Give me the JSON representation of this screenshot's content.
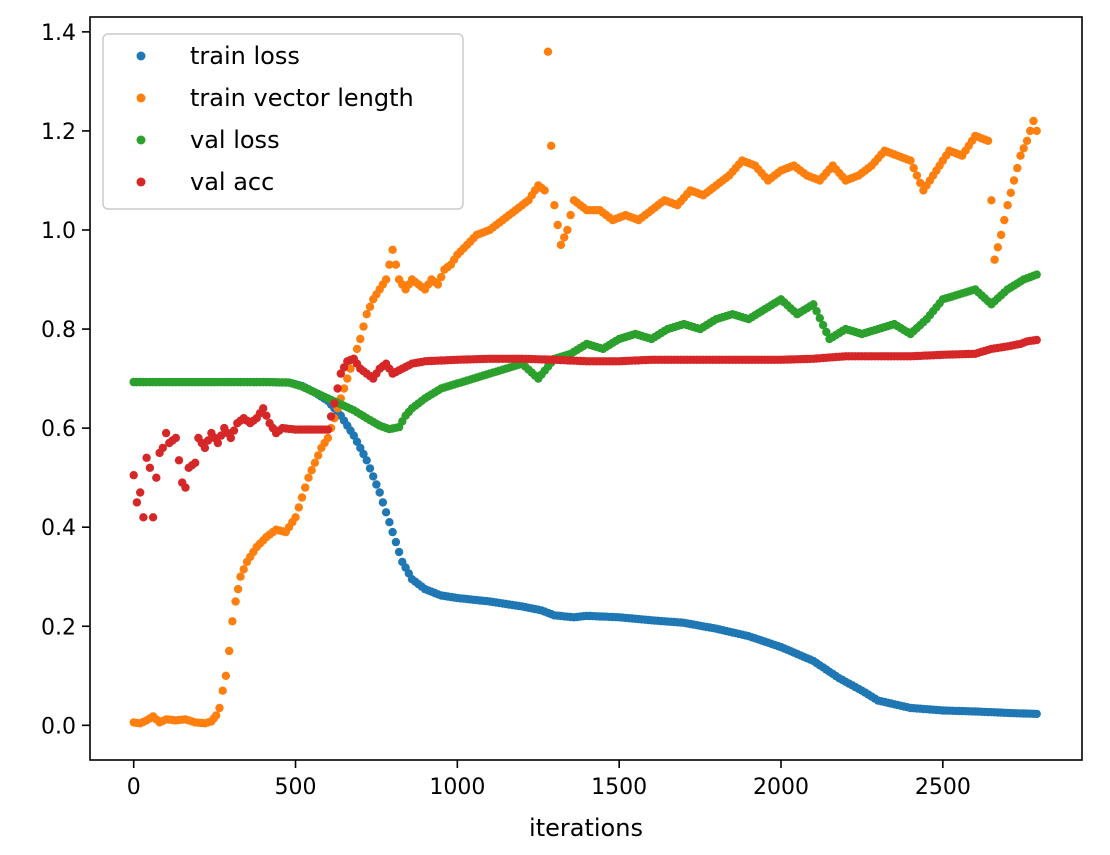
{
  "chart_data": {
    "type": "scatter",
    "title": "",
    "xlabel": "iterations",
    "ylabel": "",
    "xlim": [
      -135,
      2930
    ],
    "ylim": [
      -0.07,
      1.43
    ],
    "xticks": [
      0,
      500,
      1000,
      1500,
      2000,
      2500
    ],
    "yticks": [
      0.0,
      0.2,
      0.4,
      0.6,
      0.8,
      1.0,
      1.2,
      1.4
    ],
    "xtick_labels": [
      "0",
      "500",
      "1000",
      "1500",
      "2000",
      "2500"
    ],
    "ytick_labels": [
      "0.0",
      "0.2",
      "0.4",
      "0.6",
      "0.8",
      "1.0",
      "1.2",
      "1.4"
    ],
    "grid": false,
    "legend": {
      "position": "top-left"
    },
    "series": [
      {
        "name": "train loss",
        "color": "#1f77b4",
        "points": [
          [
            0,
            0.693
          ],
          [
            100,
            0.693
          ],
          [
            200,
            0.693
          ],
          [
            300,
            0.693
          ],
          [
            400,
            0.693
          ],
          [
            480,
            0.692
          ],
          [
            520,
            0.685
          ],
          [
            560,
            0.672
          ],
          [
            600,
            0.655
          ],
          [
            640,
            0.625
          ],
          [
            680,
            0.585
          ],
          [
            720,
            0.535
          ],
          [
            760,
            0.47
          ],
          [
            800,
            0.39
          ],
          [
            830,
            0.33
          ],
          [
            860,
            0.295
          ],
          [
            900,
            0.275
          ],
          [
            950,
            0.262
          ],
          [
            1000,
            0.257
          ],
          [
            1100,
            0.25
          ],
          [
            1200,
            0.24
          ],
          [
            1260,
            0.232
          ],
          [
            1300,
            0.222
          ],
          [
            1360,
            0.218
          ],
          [
            1400,
            0.221
          ],
          [
            1500,
            0.218
          ],
          [
            1600,
            0.212
          ],
          [
            1700,
            0.207
          ],
          [
            1800,
            0.195
          ],
          [
            1900,
            0.18
          ],
          [
            2000,
            0.158
          ],
          [
            2100,
            0.13
          ],
          [
            2180,
            0.095
          ],
          [
            2250,
            0.07
          ],
          [
            2300,
            0.05
          ],
          [
            2400,
            0.035
          ],
          [
            2500,
            0.03
          ],
          [
            2600,
            0.028
          ],
          [
            2700,
            0.025
          ],
          [
            2790,
            0.023
          ]
        ]
      },
      {
        "name": "train vector length",
        "color": "#ff7f0e",
        "points": [
          [
            0,
            0.006
          ],
          [
            20,
            0.004
          ],
          [
            40,
            0.01
          ],
          [
            60,
            0.018
          ],
          [
            80,
            0.006
          ],
          [
            100,
            0.012
          ],
          [
            130,
            0.01
          ],
          [
            160,
            0.012
          ],
          [
            190,
            0.006
          ],
          [
            220,
            0.004
          ],
          [
            240,
            0.008
          ],
          [
            255,
            0.02
          ],
          [
            265,
            0.035
          ],
          [
            275,
            0.07
          ],
          [
            285,
            0.1
          ],
          [
            295,
            0.15
          ],
          [
            305,
            0.21
          ],
          [
            315,
            0.25
          ],
          [
            330,
            0.3
          ],
          [
            350,
            0.33
          ],
          [
            380,
            0.36
          ],
          [
            410,
            0.38
          ],
          [
            440,
            0.395
          ],
          [
            470,
            0.39
          ],
          [
            500,
            0.42
          ],
          [
            520,
            0.46
          ],
          [
            540,
            0.5
          ],
          [
            560,
            0.53
          ],
          [
            580,
            0.56
          ],
          [
            600,
            0.58
          ],
          [
            620,
            0.62
          ],
          [
            640,
            0.66
          ],
          [
            660,
            0.7
          ],
          [
            680,
            0.74
          ],
          [
            700,
            0.78
          ],
          [
            720,
            0.83
          ],
          [
            740,
            0.86
          ],
          [
            760,
            0.88
          ],
          [
            780,
            0.9
          ],
          [
            800,
            0.96
          ],
          [
            820,
            0.9
          ],
          [
            840,
            0.88
          ],
          [
            860,
            0.9
          ],
          [
            880,
            0.89
          ],
          [
            900,
            0.88
          ],
          [
            920,
            0.9
          ],
          [
            940,
            0.89
          ],
          [
            960,
            0.92
          ],
          [
            980,
            0.93
          ],
          [
            1000,
            0.95
          ],
          [
            1030,
            0.97
          ],
          [
            1060,
            0.99
          ],
          [
            1100,
            1.0
          ],
          [
            1140,
            1.02
          ],
          [
            1180,
            1.04
          ],
          [
            1220,
            1.06
          ],
          [
            1250,
            1.09
          ],
          [
            1270,
            1.08
          ],
          [
            1280,
            1.36
          ],
          [
            1290,
            1.17
          ],
          [
            1300,
            1.05
          ],
          [
            1320,
            0.97
          ],
          [
            1340,
            1.0
          ],
          [
            1360,
            1.06
          ],
          [
            1400,
            1.04
          ],
          [
            1440,
            1.04
          ],
          [
            1480,
            1.02
          ],
          [
            1520,
            1.03
          ],
          [
            1560,
            1.02
          ],
          [
            1600,
            1.04
          ],
          [
            1640,
            1.06
          ],
          [
            1680,
            1.05
          ],
          [
            1720,
            1.08
          ],
          [
            1760,
            1.07
          ],
          [
            1800,
            1.09
          ],
          [
            1840,
            1.11
          ],
          [
            1880,
            1.14
          ],
          [
            1920,
            1.13
          ],
          [
            1960,
            1.1
          ],
          [
            2000,
            1.12
          ],
          [
            2040,
            1.13
          ],
          [
            2080,
            1.11
          ],
          [
            2120,
            1.1
          ],
          [
            2160,
            1.13
          ],
          [
            2200,
            1.1
          ],
          [
            2240,
            1.11
          ],
          [
            2280,
            1.13
          ],
          [
            2320,
            1.16
          ],
          [
            2360,
            1.15
          ],
          [
            2400,
            1.14
          ],
          [
            2440,
            1.08
          ],
          [
            2480,
            1.12
          ],
          [
            2520,
            1.16
          ],
          [
            2560,
            1.15
          ],
          [
            2600,
            1.19
          ],
          [
            2640,
            1.18
          ],
          [
            2660,
            0.94
          ],
          [
            2680,
            0.99
          ],
          [
            2700,
            1.05
          ],
          [
            2720,
            1.1
          ],
          [
            2740,
            1.15
          ],
          [
            2760,
            1.18
          ],
          [
            2780,
            1.22
          ],
          [
            2790,
            1.2
          ]
        ]
      },
      {
        "name": "val loss",
        "color": "#2ca02c",
        "points": [
          [
            0,
            0.693
          ],
          [
            100,
            0.693
          ],
          [
            200,
            0.693
          ],
          [
            300,
            0.693
          ],
          [
            400,
            0.693
          ],
          [
            480,
            0.692
          ],
          [
            520,
            0.684
          ],
          [
            560,
            0.672
          ],
          [
            600,
            0.66
          ],
          [
            640,
            0.648
          ],
          [
            680,
            0.636
          ],
          [
            720,
            0.62
          ],
          [
            760,
            0.605
          ],
          [
            790,
            0.598
          ],
          [
            820,
            0.602
          ],
          [
            840,
            0.625
          ],
          [
            860,
            0.64
          ],
          [
            900,
            0.66
          ],
          [
            950,
            0.68
          ],
          [
            1000,
            0.69
          ],
          [
            1050,
            0.7
          ],
          [
            1100,
            0.71
          ],
          [
            1150,
            0.72
          ],
          [
            1200,
            0.73
          ],
          [
            1250,
            0.7
          ],
          [
            1300,
            0.74
          ],
          [
            1350,
            0.75
          ],
          [
            1400,
            0.77
          ],
          [
            1450,
            0.76
          ],
          [
            1500,
            0.78
          ],
          [
            1550,
            0.79
          ],
          [
            1600,
            0.78
          ],
          [
            1650,
            0.8
          ],
          [
            1700,
            0.81
          ],
          [
            1750,
            0.8
          ],
          [
            1800,
            0.82
          ],
          [
            1850,
            0.83
          ],
          [
            1900,
            0.82
          ],
          [
            1950,
            0.84
          ],
          [
            2000,
            0.86
          ],
          [
            2050,
            0.83
          ],
          [
            2100,
            0.85
          ],
          [
            2150,
            0.78
          ],
          [
            2200,
            0.8
          ],
          [
            2250,
            0.79
          ],
          [
            2300,
            0.8
          ],
          [
            2350,
            0.81
          ],
          [
            2400,
            0.79
          ],
          [
            2450,
            0.82
          ],
          [
            2500,
            0.86
          ],
          [
            2550,
            0.87
          ],
          [
            2600,
            0.88
          ],
          [
            2650,
            0.85
          ],
          [
            2700,
            0.88
          ],
          [
            2750,
            0.9
          ],
          [
            2790,
            0.91
          ]
        ]
      },
      {
        "name": "val acc",
        "color": "#d62728",
        "points": [
          [
            0,
            0.505
          ],
          [
            10,
            0.45
          ],
          [
            20,
            0.47
          ],
          [
            30,
            0.42
          ],
          [
            40,
            0.54
          ],
          [
            50,
            0.52
          ],
          [
            60,
            0.42
          ],
          [
            70,
            0.5
          ],
          [
            80,
            0.55
          ],
          [
            90,
            0.56
          ],
          [
            100,
            0.59
          ],
          [
            110,
            0.57
          ],
          [
            130,
            0.58
          ],
          [
            150,
            0.49
          ],
          [
            160,
            0.48
          ],
          [
            170,
            0.52
          ],
          [
            190,
            0.53
          ],
          [
            200,
            0.58
          ],
          [
            220,
            0.56
          ],
          [
            240,
            0.59
          ],
          [
            260,
            0.57
          ],
          [
            280,
            0.6
          ],
          [
            300,
            0.58
          ],
          [
            320,
            0.61
          ],
          [
            340,
            0.62
          ],
          [
            360,
            0.61
          ],
          [
            380,
            0.62
          ],
          [
            400,
            0.64
          ],
          [
            420,
            0.61
          ],
          [
            440,
            0.59
          ],
          [
            460,
            0.6
          ],
          [
            500,
            0.597
          ],
          [
            550,
            0.597
          ],
          [
            600,
            0.597
          ],
          [
            620,
            0.65
          ],
          [
            640,
            0.71
          ],
          [
            660,
            0.735
          ],
          [
            680,
            0.74
          ],
          [
            700,
            0.72
          ],
          [
            720,
            0.71
          ],
          [
            740,
            0.7
          ],
          [
            760,
            0.72
          ],
          [
            780,
            0.73
          ],
          [
            800,
            0.71
          ],
          [
            830,
            0.72
          ],
          [
            860,
            0.73
          ],
          [
            900,
            0.735
          ],
          [
            1000,
            0.738
          ],
          [
            1100,
            0.74
          ],
          [
            1200,
            0.74
          ],
          [
            1300,
            0.738
          ],
          [
            1400,
            0.735
          ],
          [
            1500,
            0.735
          ],
          [
            1600,
            0.738
          ],
          [
            1700,
            0.738
          ],
          [
            1800,
            0.738
          ],
          [
            1900,
            0.738
          ],
          [
            2000,
            0.738
          ],
          [
            2100,
            0.74
          ],
          [
            2200,
            0.745
          ],
          [
            2300,
            0.745
          ],
          [
            2400,
            0.745
          ],
          [
            2500,
            0.748
          ],
          [
            2600,
            0.75
          ],
          [
            2650,
            0.76
          ],
          [
            2700,
            0.765
          ],
          [
            2740,
            0.77
          ],
          [
            2760,
            0.775
          ],
          [
            2790,
            0.778
          ]
        ]
      }
    ]
  }
}
